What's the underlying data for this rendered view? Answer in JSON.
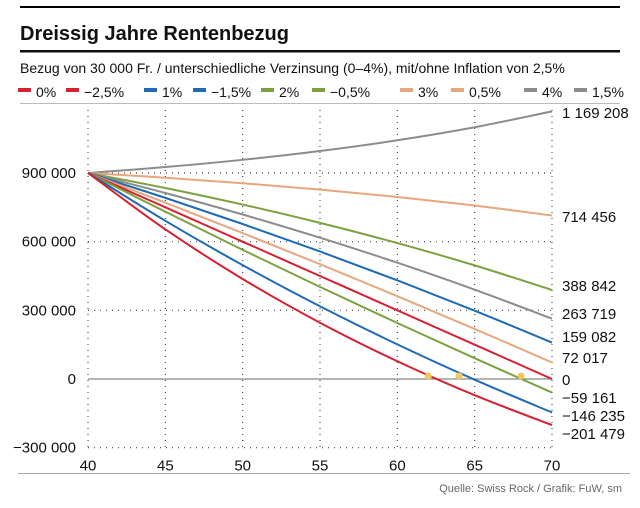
{
  "chart_data": {
    "type": "line",
    "title": "Dreissig Jahre Rentenbezug",
    "subtitle": "Bezug von 30 000 Fr. / unterschiedliche Verzinsung (0–4%), mit/ohne Inflation von 2,5%",
    "source": "Quelle: Swiss Rock / Grafik: FuW, sm",
    "xlabel": "",
    "ylabel": "",
    "xlim": [
      40,
      70
    ],
    "ylim": [
      -300000,
      1200000
    ],
    "x_ticks": [
      "40",
      "45",
      "50",
      "55",
      "60",
      "65",
      "70"
    ],
    "y_ticks": [
      {
        "value": 900000,
        "label": "900 000"
      },
      {
        "value": 600000,
        "label": "600 000"
      },
      {
        "value": 300000,
        "label": "300 000"
      },
      {
        "value": 0,
        "label": "0"
      },
      {
        "value": -300000,
        "label": "−300 000"
      }
    ],
    "grid": "dotted",
    "legend_position": "top",
    "x": [
      40,
      45,
      50,
      55,
      60,
      65,
      70
    ],
    "series": [
      {
        "name": "0%",
        "color": "#d6202f",
        "values": [
          900000,
          750000,
          600000,
          450000,
          300000,
          150000,
          0
        ],
        "end_label": "0"
      },
      {
        "name": "−2,5%",
        "color": "#d6202f",
        "values": [
          900000,
          653869,
          436998,
          245926,
          77562,
          -70776,
          -201479
        ],
        "end_label": "−201 479"
      },
      {
        "name": "1%",
        "color": "#1f6ab4",
        "values": [
          900000,
          791349,
          677159,
          557134,
          430995,
          298424,
          159082
        ],
        "end_label": "159 082"
      },
      {
        "name": "−1,5%",
        "color": "#1f6ab4",
        "values": [
          900000,
          691113,
          497425,
          317838,
          151323,
          -3077,
          -146235
        ],
        "end_label": "−146 235"
      },
      {
        "name": "2%",
        "color": "#7ba23f",
        "values": [
          900000,
          834430,
          762036,
          682102,
          593851,
          496416,
          388842
        ],
        "end_label": "388 842"
      },
      {
        "name": "−0,5%",
        "color": "#7ba23f",
        "values": [
          900000,
          730954,
          564126,
          402399,
          244671,
          90851,
          -59161
        ],
        "end_label": "−59 161"
      },
      {
        "name": "3%",
        "color": "#e8a67d",
        "values": [
          900000,
          879295,
          855290,
          827464,
          795206,
          757809,
          714456
        ],
        "end_label": "714 456"
      },
      {
        "name": "0,5%",
        "color": "#e8a67d",
        "values": [
          900000,
          770462,
          637652,
          501486,
          361884,
          218757,
          72017
        ],
        "end_label": "72 017"
      },
      {
        "name": "4%",
        "color": "#8c8c8c",
        "values": [
          900000,
          925998,
          957629,
          996113,
          1042934,
          1099901,
          1169208
        ],
        "end_label": "1 169 208"
      },
      {
        "name": "1,5%",
        "color": "#8c8c8c",
        "values": [
          900000,
          812674,
          718590,
          617240,
          508048,
          390426,
          263719
        ],
        "end_label": "263 719"
      }
    ],
    "markers": {
      "color": "#f2c75c",
      "x": [
        62,
        64,
        68
      ],
      "y": [
        0,
        0,
        0
      ]
    }
  }
}
